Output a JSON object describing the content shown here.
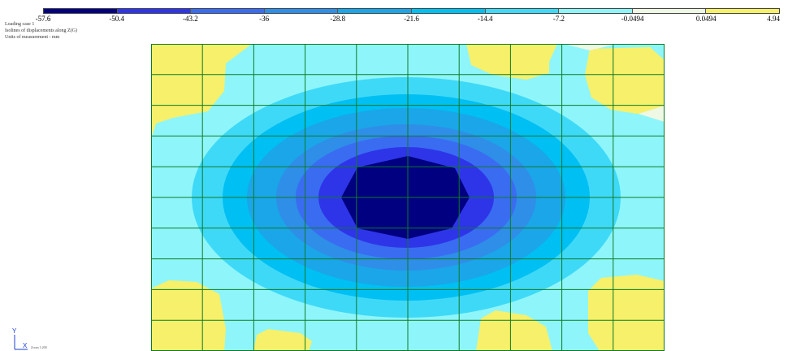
{
  "legend": {
    "labels": [
      "-57.6",
      "-50.4",
      "-43.2",
      "-36",
      "-28.8",
      "-21.6",
      "-14.4",
      "-7.2",
      "-0.0494",
      "0.0494",
      "4.94"
    ],
    "colors": [
      "#000080",
      "#2e35e8",
      "#3a6cf2",
      "#2f8ee8",
      "#1aa6e8",
      "#00bff2",
      "#3fd9f8",
      "#8ef6fa",
      "#eef8e4",
      "#f6f06a"
    ]
  },
  "info": {
    "line1": "Loading case 1",
    "line2": "Isolines of displacements along Z(G)",
    "line3": "Units of measurement - mm"
  },
  "axes": {
    "y_label": "Y",
    "x_label": "X"
  },
  "scale_text": "Zoom 1:200"
}
